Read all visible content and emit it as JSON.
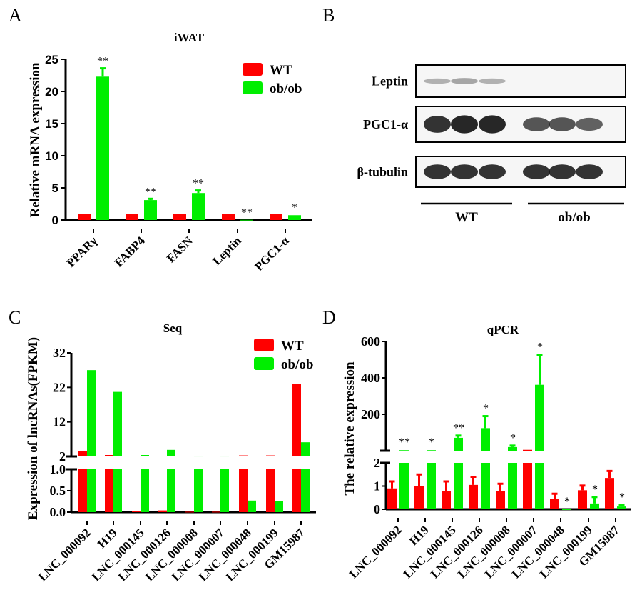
{
  "colors": {
    "WT": "#ff0000",
    "ob/ob": "#00ee00",
    "axis": "#000000"
  },
  "legend": [
    "WT",
    "ob/ob"
  ],
  "panel_labels": [
    "A",
    "B",
    "C",
    "D"
  ],
  "western_blot": {
    "rows": [
      "Leptin",
      "PGC1-α",
      "β-tubulin"
    ],
    "groups": [
      "WT",
      "ob/ob"
    ],
    "lanes_per_group": 3,
    "band_intensity": {
      "Leptin": [
        0.3,
        0.35,
        0.3,
        0,
        0,
        0
      ],
      "PGC1-α": [
        0.85,
        0.9,
        0.9,
        0.7,
        0.7,
        0.65
      ],
      "β-tubulin": [
        0.85,
        0.85,
        0.85,
        0.85,
        0.85,
        0.85
      ]
    }
  },
  "chart_data": [
    {
      "panel": "A",
      "type": "bar",
      "title": "iWAT",
      "ylabel": "Relative mRNA expression",
      "xlabel": "",
      "ylim": [
        0,
        25
      ],
      "yticks": [
        "0",
        "5",
        "10",
        "15",
        "20",
        "25"
      ],
      "categories": [
        "PPARγ",
        "FABP4",
        "FASN",
        "Leptin",
        "PGC1-α"
      ],
      "series": [
        {
          "name": "WT",
          "values": [
            1.0,
            1.0,
            1.0,
            1.0,
            1.0
          ],
          "errors": [
            0.05,
            0.08,
            0.05,
            0.05,
            0.05
          ]
        },
        {
          "name": "ob/ob",
          "values": [
            22.3,
            3.1,
            4.2,
            0.03,
            0.75
          ],
          "errors": [
            1.3,
            0.2,
            0.4,
            0.01,
            0.08
          ]
        }
      ],
      "significance": [
        "**",
        "**",
        "**",
        "**",
        "*"
      ],
      "legend_position": "top-right"
    },
    {
      "panel": "C",
      "type": "bar",
      "title": "Seq",
      "ylabel": "Expression of lncRNAs(FPKM)",
      "xlabel": "",
      "broken_axis": {
        "lower": [
          0,
          1.0
        ],
        "upper": [
          2,
          32
        ]
      },
      "yticks_lower": [
        "0.0",
        "0.5",
        "1.0"
      ],
      "yticks_upper": [
        "2",
        "12",
        "22",
        "32"
      ],
      "categories": [
        "LNC_000092",
        "H19",
        "LNC_000145",
        "LNC_000126",
        "LNC_000008",
        "LNC_000007",
        "LNC_000048",
        "LNC_000199",
        "GM15987"
      ],
      "series": [
        {
          "name": "WT",
          "values": [
            3.6,
            1.5,
            0.03,
            0.04,
            0.01,
            0.01,
            2.3,
            2.3,
            23.0
          ]
        },
        {
          "name": "ob/ob",
          "values": [
            27.0,
            20.7,
            1.5,
            3.9,
            2.2,
            2.2,
            0.27,
            0.25,
            6.1
          ]
        }
      ],
      "legend_position": "top-right"
    },
    {
      "panel": "D",
      "type": "bar",
      "title": "qPCR",
      "ylabel": "The relative expression",
      "xlabel": "",
      "broken_axis": {
        "lower": [
          0,
          2
        ],
        "upper": [
          0,
          600
        ]
      },
      "yticks_lower": [
        "0",
        "1",
        "2"
      ],
      "yticks_upper": [
        "200",
        "400",
        "600"
      ],
      "categories": [
        "LNC_000092",
        "H19",
        "LNC_000145",
        "LNC_000126",
        "LNC_000008",
        "LNC_000007",
        "LNC_000048",
        "LNC_000199",
        "GM15987"
      ],
      "series": [
        {
          "name": "WT",
          "values": [
            0.9,
            1.0,
            0.8,
            1.05,
            0.8,
            5,
            0.45,
            0.82,
            1.35
          ],
          "errors": [
            0.3,
            0.5,
            0.4,
            0.35,
            0.3,
            0,
            0.22,
            0.2,
            0.3
          ]
        },
        {
          "name": "ob/ob",
          "values": [
            3,
            3,
            71,
            124,
            20,
            362,
            0.0,
            0.25,
            0.12
          ],
          "errors": [
            0,
            0,
            12,
            66,
            8,
            165,
            0,
            0.28,
            0.06
          ]
        }
      ],
      "significance": [
        "**",
        "*",
        "**",
        "*",
        "*",
        "*",
        "*",
        "*",
        "*"
      ]
    }
  ]
}
